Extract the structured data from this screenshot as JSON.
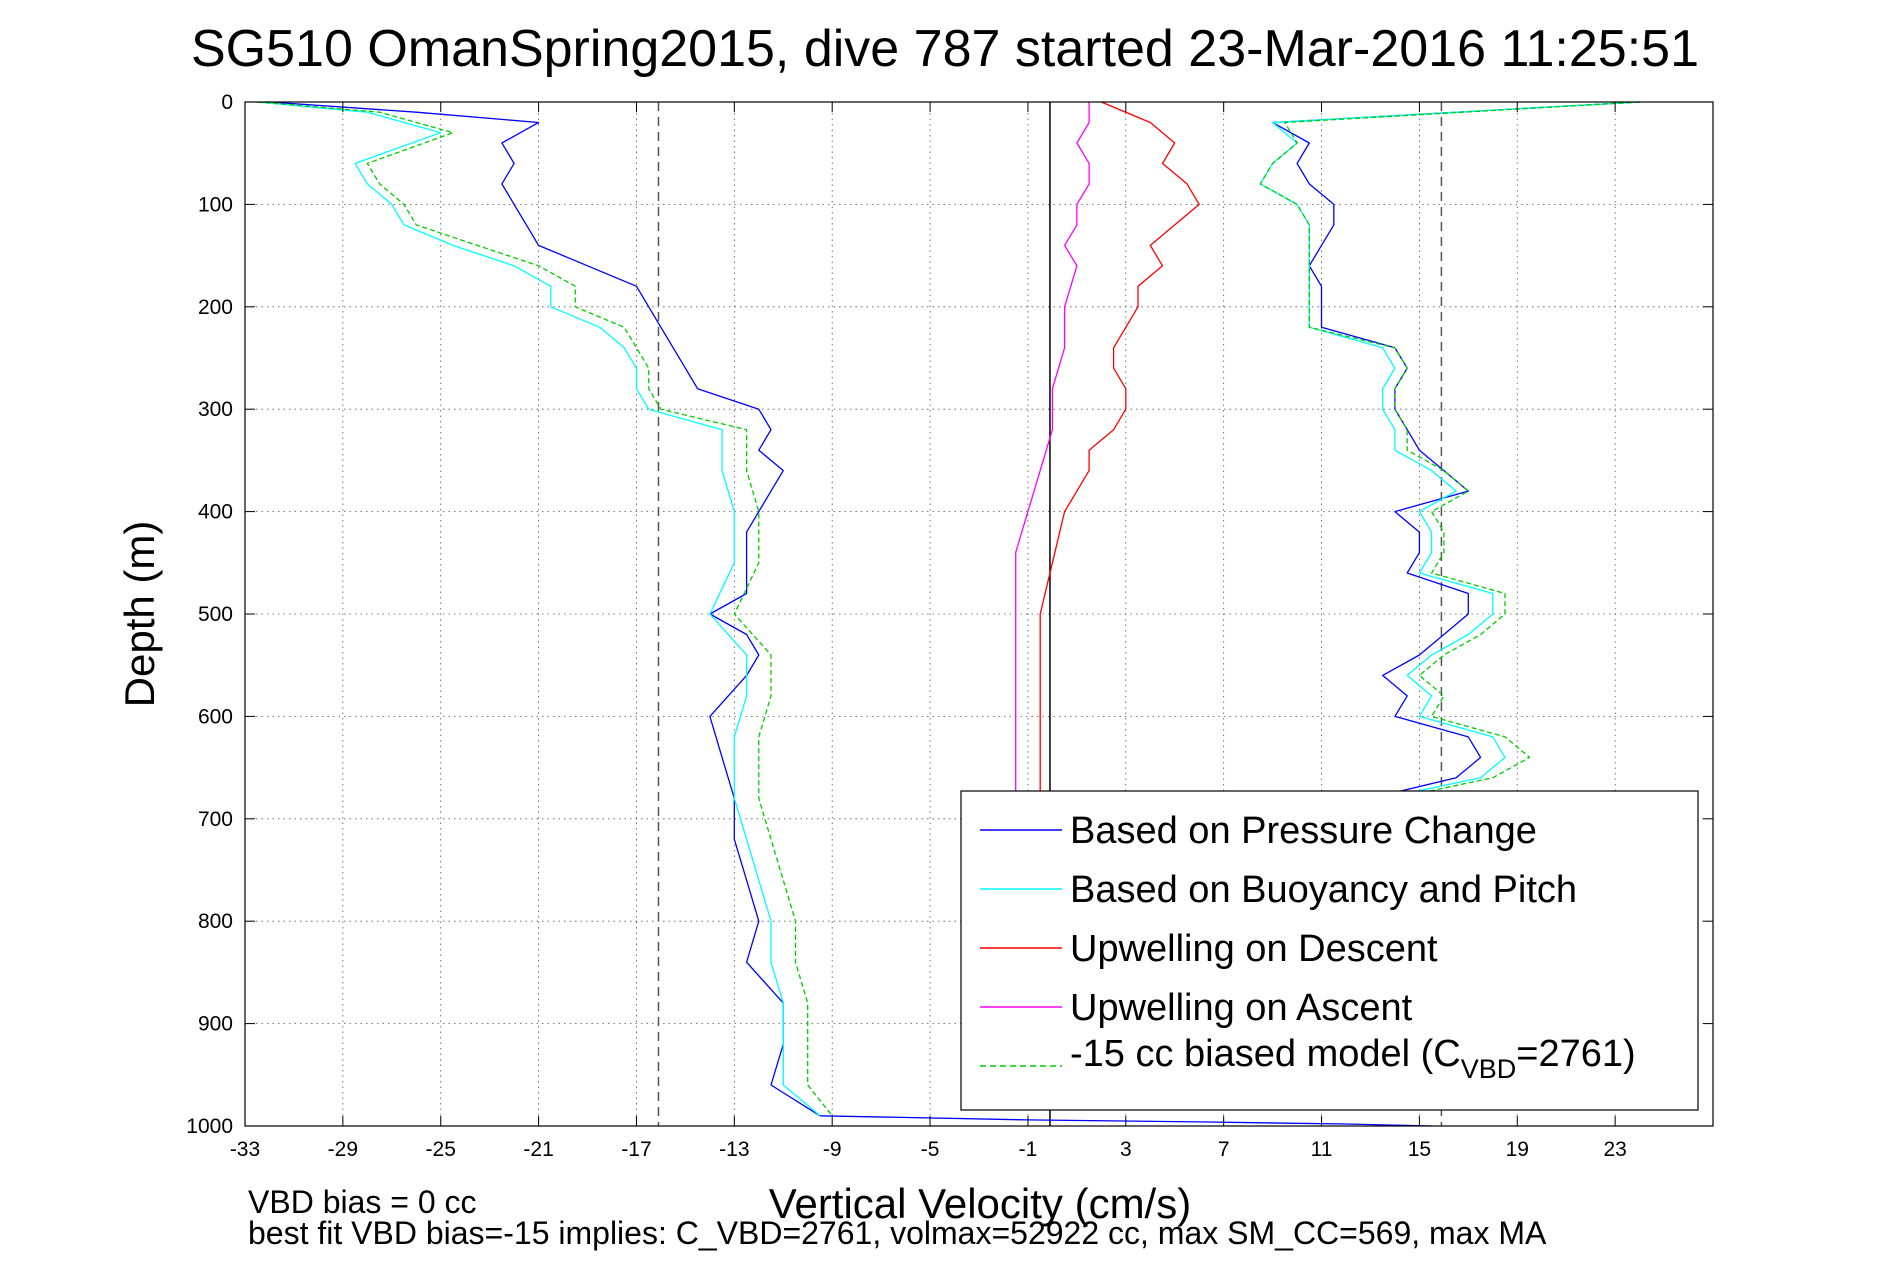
{
  "chart_data": {
    "type": "line",
    "title": "SG510 OmanSpring2015, dive 787 started 23-Mar-2016 11:25:51",
    "xlabel": "Vertical Velocity (cm/s)",
    "ylabel": "Depth (m)",
    "xlim": [
      -33,
      27
    ],
    "ylim": [
      1000,
      0
    ],
    "y_reversed": true,
    "grid": true,
    "legend_position": "bottom-right",
    "x_ticks": [
      -33,
      -29,
      -25,
      -21,
      -17,
      -13,
      -9,
      -5,
      -1,
      3,
      7,
      11,
      15,
      19,
      23
    ],
    "x_tick_labels": [
      "-33",
      "-29",
      "-25",
      "-21",
      "-17",
      "-13",
      "-9",
      "-5",
      "-1",
      "3",
      "7",
      "11",
      "15",
      "19",
      "23"
    ],
    "y_ticks": [
      0,
      100,
      200,
      300,
      400,
      500,
      600,
      700,
      800,
      900,
      1000
    ],
    "y_tick_labels": [
      "0",
      "100",
      "200",
      "300",
      "400",
      "500",
      "600",
      "700",
      "800",
      "900",
      "1000"
    ],
    "reference_lines": [
      {
        "style": "dashed",
        "color": "#555555",
        "x": -16.1
      },
      {
        "style": "dashed",
        "color": "#555555",
        "x": 15.9
      },
      {
        "style": "solid",
        "color": "#000000",
        "x": -0.1
      }
    ],
    "legend": [
      {
        "label": "Based on Pressure Change",
        "color": "#0000ff",
        "dash": "solid"
      },
      {
        "label": "Based on Buoyancy and Pitch",
        "color": "#00ffff",
        "dash": "solid"
      },
      {
        "label": "Upwelling on Descent",
        "color": "#ff0000",
        "dash": "solid"
      },
      {
        "label": "Upwelling on Ascent",
        "color": "#ff00ff",
        "dash": "solid"
      },
      {
        "label_pre": "-15 cc biased model (C",
        "label_sub": "VBD",
        "label_post": "=2761)",
        "color": "#00cc00",
        "dash": "dashed"
      }
    ],
    "series": [
      {
        "name": "Based on Pressure Change (descent)",
        "color": "#0000ff",
        "dash": "solid",
        "depth": [
          0,
          10,
          20,
          40,
          60,
          80,
          100,
          120,
          140,
          160,
          180,
          200,
          220,
          240,
          260,
          280,
          300,
          320,
          340,
          360,
          380,
          400,
          420,
          450,
          480,
          500,
          520,
          540,
          560,
          600,
          640,
          680,
          720,
          760,
          800,
          840,
          880,
          920,
          960,
          990
        ],
        "x": [
          -32.0,
          -26.0,
          -21.0,
          -22.5,
          -22.0,
          -22.5,
          -22.0,
          -21.5,
          -21.0,
          -19.0,
          -17.0,
          -16.5,
          -16.0,
          -15.5,
          -15.0,
          -14.5,
          -12.0,
          -11.5,
          -12.0,
          -11.0,
          -11.5,
          -12.0,
          -12.5,
          -12.5,
          -12.5,
          -14.0,
          -12.5,
          -12.0,
          -12.5,
          -14.0,
          -13.5,
          -13.0,
          -13.0,
          -12.5,
          -12.0,
          -12.5,
          -11.0,
          -11.0,
          -11.5,
          -9.5
        ]
      },
      {
        "name": "Based on Buoyancy and Pitch (descent)",
        "color": "#00ffff",
        "dash": "solid",
        "depth": [
          0,
          10,
          30,
          60,
          80,
          100,
          120,
          140,
          160,
          180,
          200,
          220,
          240,
          260,
          280,
          300,
          320,
          360,
          400,
          450,
          500,
          540,
          580,
          620,
          680,
          720,
          760,
          800,
          840,
          880,
          920,
          960,
          990
        ],
        "x": [
          -32.5,
          -28.0,
          -25.0,
          -28.5,
          -28.0,
          -27.0,
          -26.5,
          -24.5,
          -22.0,
          -20.5,
          -20.5,
          -18.5,
          -17.5,
          -17.0,
          -17.0,
          -16.5,
          -13.5,
          -13.5,
          -13.0,
          -13.0,
          -14.0,
          -12.5,
          -12.5,
          -13.0,
          -13.0,
          -12.5,
          -12.0,
          -11.5,
          -11.5,
          -11.0,
          -11.0,
          -11.0,
          -9.5
        ]
      },
      {
        "name": "-15 cc biased model (descent)",
        "color": "#00cc00",
        "dash": "dashed",
        "depth": [
          0,
          10,
          30,
          60,
          80,
          100,
          120,
          140,
          160,
          180,
          200,
          220,
          240,
          260,
          280,
          300,
          320,
          360,
          400,
          450,
          500,
          540,
          580,
          620,
          680,
          720,
          760,
          800,
          840,
          880,
          920,
          960,
          990
        ],
        "x": [
          -32.5,
          -27.5,
          -24.5,
          -28.0,
          -27.5,
          -26.5,
          -26.0,
          -23.5,
          -21.0,
          -19.5,
          -19.5,
          -17.5,
          -17.0,
          -16.5,
          -16.5,
          -16.0,
          -12.5,
          -12.5,
          -12.0,
          -12.0,
          -13.0,
          -11.5,
          -11.5,
          -12.0,
          -12.0,
          -11.5,
          -11.0,
          -10.5,
          -10.5,
          -10.0,
          -10.0,
          -10.0,
          -9.0
        ]
      },
      {
        "name": "Upwelling on Descent",
        "color": "#ff0000",
        "dash": "solid",
        "depth": [
          0,
          20,
          40,
          60,
          80,
          100,
          120,
          140,
          160,
          180,
          200,
          220,
          240,
          260,
          280,
          300,
          320,
          340,
          360,
          380,
          400,
          450,
          500,
          550,
          600,
          650,
          680
        ],
        "x": [
          2.0,
          4.0,
          5.0,
          4.5,
          5.5,
          6.0,
          5.0,
          4.0,
          4.5,
          3.5,
          3.5,
          3.0,
          2.5,
          2.5,
          3.0,
          3.0,
          2.5,
          1.5,
          1.5,
          1.0,
          0.5,
          0.0,
          -0.5,
          -0.5,
          -0.5,
          -0.5,
          -0.5
        ]
      },
      {
        "name": "Upwelling on Ascent",
        "color": "#ff00ff",
        "dash": "solid",
        "depth": [
          0,
          20,
          40,
          60,
          80,
          100,
          120,
          140,
          160,
          200,
          240,
          280,
          320,
          360,
          400,
          440,
          480,
          520,
          560,
          600,
          640,
          680
        ],
        "x": [
          1.5,
          1.5,
          1.0,
          1.5,
          1.5,
          1.0,
          1.0,
          0.5,
          1.0,
          0.5,
          0.5,
          0.0,
          0.0,
          -0.5,
          -1.0,
          -1.5,
          -1.5,
          -1.5,
          -1.5,
          -1.5,
          -1.5,
          -1.5
        ]
      },
      {
        "name": "Based on Pressure Change (ascent)",
        "color": "#0000ff",
        "dash": "solid",
        "depth": [
          0,
          20,
          40,
          60,
          80,
          100,
          120,
          140,
          160,
          180,
          200,
          220,
          240,
          260,
          280,
          300,
          320,
          340,
          360,
          380,
          400,
          420,
          440,
          460,
          480,
          500,
          520,
          540,
          560,
          580,
          600,
          620,
          640,
          660,
          680
        ],
        "x": [
          24.0,
          9.0,
          10.5,
          10.0,
          10.5,
          11.5,
          11.5,
          11.0,
          10.5,
          11.0,
          11.0,
          11.0,
          14.0,
          14.5,
          14.0,
          14.0,
          14.5,
          15.0,
          16.0,
          17.0,
          14.0,
          15.0,
          15.0,
          14.5,
          17.0,
          17.0,
          16.0,
          15.0,
          13.5,
          14.5,
          14.0,
          17.0,
          17.5,
          16.5,
          13.0
        ]
      },
      {
        "name": "Based on Buoyancy and Pitch (ascent)",
        "color": "#00ffff",
        "dash": "solid",
        "depth": [
          0,
          20,
          40,
          60,
          80,
          100,
          120,
          140,
          160,
          180,
          200,
          220,
          240,
          260,
          280,
          300,
          320,
          340,
          360,
          380,
          400,
          420,
          440,
          460,
          480,
          500,
          520,
          540,
          560,
          580,
          600,
          620,
          640,
          660,
          680
        ],
        "x": [
          24.0,
          9.0,
          10.0,
          9.0,
          8.5,
          10.0,
          10.5,
          10.5,
          10.5,
          10.5,
          10.5,
          10.5,
          13.5,
          14.0,
          13.5,
          13.5,
          14.0,
          14.0,
          15.5,
          16.5,
          15.0,
          15.5,
          15.5,
          15.0,
          18.0,
          18.0,
          17.0,
          15.5,
          14.5,
          15.5,
          15.0,
          18.0,
          18.5,
          17.5,
          13.5
        ]
      },
      {
        "name": "-15 cc biased model (ascent)",
        "color": "#00cc00",
        "dash": "dashed",
        "depth": [
          0,
          20,
          40,
          60,
          80,
          100,
          120,
          140,
          160,
          180,
          200,
          220,
          240,
          260,
          280,
          300,
          320,
          340,
          360,
          380,
          400,
          420,
          440,
          460,
          480,
          500,
          520,
          540,
          560,
          580,
          600,
          620,
          640,
          660,
          680
        ],
        "x": [
          24.0,
          9.5,
          10.0,
          9.0,
          8.5,
          10.0,
          10.5,
          10.5,
          10.5,
          10.5,
          10.5,
          10.5,
          14.0,
          14.5,
          14.0,
          14.0,
          14.5,
          14.5,
          16.0,
          17.0,
          15.5,
          16.0,
          16.0,
          15.5,
          18.5,
          18.5,
          17.5,
          16.0,
          15.0,
          16.0,
          15.5,
          18.5,
          19.5,
          18.0,
          14.0
        ]
      },
      {
        "name": "Bottom turnaround",
        "color": "#0000ff",
        "dash": "solid",
        "depth": [
          990,
          994,
          996,
          998,
          1000
        ],
        "x": [
          -9.5,
          -1.0,
          6.0,
          12.0,
          15.5
        ]
      }
    ]
  },
  "footer": {
    "line1": "VBD bias = 0 cc",
    "line2": "best fit VBD bias=-15 implies: C_VBD=2761, volmax=52922 cc, max SM_CC=569, max MA"
  }
}
